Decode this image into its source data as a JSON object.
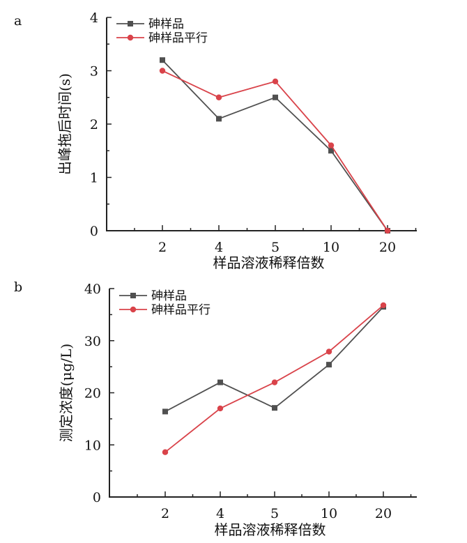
{
  "chart_data": [
    {
      "panel": "a",
      "type": "line",
      "categories": [
        "2",
        "4",
        "5",
        "10",
        "20"
      ],
      "xlabel": "样品溶液稀释倍数",
      "ylabel": "出峰拖后时间(s)",
      "ylim": [
        0,
        4
      ],
      "yticks": [
        "0",
        "1",
        "2",
        "3",
        "4"
      ],
      "legend_position": "top-left",
      "series": [
        {
          "name": "砷样品",
          "marker": "square",
          "color": "#505050",
          "values": [
            3.2,
            2.1,
            2.5,
            1.5,
            0.0
          ]
        },
        {
          "name": "砷样品平行",
          "marker": "circle",
          "color": "#d9434a",
          "values": [
            3.0,
            2.5,
            2.8,
            1.6,
            0.0
          ]
        }
      ]
    },
    {
      "panel": "b",
      "type": "line",
      "categories": [
        "2",
        "4",
        "5",
        "10",
        "20"
      ],
      "xlabel": "样品溶液稀释倍数",
      "ylabel": "测定浓度(μg/L)",
      "ylim": [
        0,
        40
      ],
      "yticks": [
        "0",
        "10",
        "20",
        "30",
        "40"
      ],
      "legend_position": "top-left",
      "series": [
        {
          "name": "砷样品",
          "marker": "square",
          "color": "#505050",
          "values": [
            16.4,
            22.0,
            17.1,
            25.4,
            36.5
          ]
        },
        {
          "name": "砷样品平行",
          "marker": "circle",
          "color": "#d9434a",
          "values": [
            8.6,
            17.0,
            22.0,
            27.9,
            36.8
          ]
        }
      ]
    }
  ]
}
